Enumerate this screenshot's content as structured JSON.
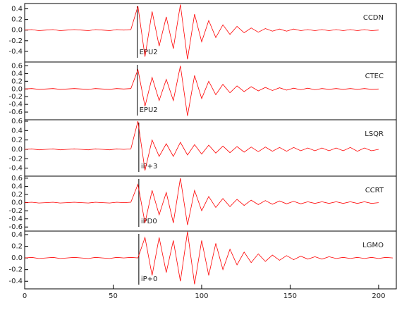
{
  "chart_data": {
    "type": "line",
    "xlim": [
      0,
      210
    ],
    "xticks": [
      0,
      50,
      100,
      150,
      200
    ],
    "color": "#ff0000",
    "panels": [
      {
        "station": "CCDN",
        "phase": "EPU2",
        "pick": 63.6,
        "ylim": [
          -0.6,
          0.5
        ],
        "yticks": [
          -0.4,
          -0.2,
          {
            "value": 0,
            "label": "0.0"
          },
          0.2,
          0.4
        ],
        "x": [
          0,
          4,
          8,
          12,
          16,
          20,
          24,
          28,
          32,
          36,
          40,
          44,
          48,
          52,
          56,
          60,
          64,
          68,
          72,
          76,
          80,
          84,
          88,
          92,
          96,
          100,
          104,
          108,
          112,
          116,
          120,
          124,
          128,
          132,
          136,
          140,
          144,
          148,
          152,
          156,
          160,
          164,
          168,
          172,
          176,
          180,
          184,
          188,
          192,
          196,
          200
        ],
        "values": [
          0,
          0.01,
          -0.01,
          0,
          0.01,
          -0.01,
          0,
          0.01,
          0,
          -0.01,
          0.01,
          0,
          -0.01,
          0.01,
          0,
          0.01,
          0.45,
          -0.5,
          0.35,
          -0.3,
          0.25,
          -0.35,
          0.48,
          -0.55,
          0.3,
          -0.22,
          0.18,
          -0.14,
          0.1,
          -0.08,
          0.07,
          -0.05,
          0.04,
          -0.04,
          0.03,
          -0.02,
          0.02,
          -0.02,
          0.02,
          -0.01,
          0.01,
          -0.01,
          0.01,
          -0.01,
          0.01,
          -0.01,
          0.01,
          -0.01,
          0.01,
          -0.01,
          0
        ]
      },
      {
        "station": "CTEC",
        "phase": "EPU2",
        "pick": 63.6,
        "ylim": [
          -0.8,
          0.7
        ],
        "yticks": [
          -0.6,
          -0.4,
          -0.2,
          {
            "value": 0,
            "label": "0.0"
          },
          0.2,
          0.4,
          0.6
        ],
        "x": [
          0,
          4,
          8,
          12,
          16,
          20,
          24,
          28,
          32,
          36,
          40,
          44,
          48,
          52,
          56,
          60,
          64,
          68,
          72,
          76,
          80,
          84,
          88,
          92,
          96,
          100,
          104,
          108,
          112,
          116,
          120,
          124,
          128,
          132,
          136,
          140,
          144,
          148,
          152,
          156,
          160,
          164,
          168,
          172,
          176,
          180,
          184,
          188,
          192,
          196,
          200
        ],
        "values": [
          0,
          0.01,
          -0.01,
          0,
          0.01,
          -0.01,
          0,
          0.01,
          0,
          -0.01,
          0.01,
          0,
          -0.01,
          0.01,
          0,
          0.01,
          0.5,
          -0.45,
          0.3,
          -0.3,
          0.25,
          -0.3,
          0.6,
          -0.7,
          0.35,
          -0.25,
          0.2,
          -0.15,
          0.12,
          -0.1,
          0.08,
          -0.07,
          0.06,
          -0.05,
          0.04,
          -0.04,
          0.03,
          -0.03,
          0.02,
          -0.02,
          0.02,
          -0.02,
          0.01,
          -0.01,
          0.01,
          -0.01,
          0.01,
          -0.01,
          0.01,
          -0.01,
          0
        ]
      },
      {
        "station": "LSQR",
        "phase": "iP+3",
        "pick": 64.5,
        "ylim": [
          -0.57,
          0.63
        ],
        "yticks": [
          -0.4,
          -0.2,
          {
            "value": 0,
            "label": "0.0"
          },
          0.2,
          0.4,
          0.6
        ],
        "x": [
          0,
          4,
          8,
          12,
          16,
          20,
          24,
          28,
          32,
          36,
          40,
          44,
          48,
          52,
          56,
          60,
          64,
          68,
          72,
          76,
          80,
          84,
          88,
          92,
          96,
          100,
          104,
          108,
          112,
          116,
          120,
          124,
          128,
          132,
          136,
          140,
          144,
          148,
          152,
          156,
          160,
          164,
          168,
          172,
          176,
          180,
          184,
          188,
          192,
          196,
          200
        ],
        "values": [
          0,
          0.01,
          -0.01,
          0,
          0.01,
          -0.01,
          0,
          0.01,
          0,
          -0.01,
          0.01,
          0,
          -0.01,
          0.01,
          0,
          0.01,
          0.6,
          -0.45,
          0.2,
          -0.15,
          0.12,
          -0.15,
          0.15,
          -0.12,
          0.1,
          -0.1,
          0.09,
          -0.08,
          0.07,
          -0.07,
          0.06,
          -0.06,
          0.05,
          -0.05,
          0.05,
          -0.04,
          0.04,
          -0.04,
          0.04,
          -0.03,
          0.03,
          -0.03,
          0.03,
          -0.03,
          0.03,
          -0.03,
          0.04,
          -0.04,
          0.03,
          -0.03,
          0
        ]
      },
      {
        "station": "CCRT",
        "phase": "iPD0",
        "pick": 64.5,
        "ylim": [
          -0.7,
          0.65
        ],
        "yticks": [
          -0.6,
          -0.4,
          -0.2,
          {
            "value": 0,
            "label": "0.0"
          },
          0.2,
          0.4,
          0.6
        ],
        "x": [
          0,
          4,
          8,
          12,
          16,
          20,
          24,
          28,
          32,
          36,
          40,
          44,
          48,
          52,
          56,
          60,
          64,
          68,
          72,
          76,
          80,
          84,
          88,
          92,
          96,
          100,
          104,
          108,
          112,
          116,
          120,
          124,
          128,
          132,
          136,
          140,
          144,
          148,
          152,
          156,
          160,
          164,
          168,
          172,
          176,
          180,
          184,
          188,
          192,
          196,
          200
        ],
        "values": [
          0,
          0.01,
          -0.01,
          0,
          0.01,
          -0.01,
          0,
          0.01,
          0,
          -0.01,
          0.01,
          0,
          -0.01,
          0.01,
          0,
          0.01,
          0.45,
          -0.5,
          0.3,
          -0.3,
          0.25,
          -0.5,
          0.6,
          -0.55,
          0.3,
          -0.2,
          0.15,
          -0.12,
          0.1,
          -0.1,
          0.08,
          -0.07,
          0.06,
          -0.05,
          0.05,
          -0.04,
          0.04,
          -0.03,
          0.03,
          -0.03,
          0.02,
          -0.02,
          0.02,
          -0.02,
          0.02,
          -0.02,
          0.02,
          -0.02,
          0.02,
          -0.02,
          0
        ]
      },
      {
        "station": "LGMO",
        "phase": "iP+0",
        "pick": 64.5,
        "ylim": [
          -0.53,
          0.46
        ],
        "yticks": [
          -0.4,
          -0.2,
          {
            "value": 0,
            "label": "0.0"
          },
          0.2,
          0.4
        ],
        "x": [
          0,
          4,
          8,
          12,
          16,
          20,
          24,
          28,
          32,
          36,
          40,
          44,
          48,
          52,
          56,
          60,
          64,
          68,
          72,
          76,
          80,
          84,
          88,
          92,
          96,
          100,
          104,
          108,
          112,
          116,
          120,
          124,
          128,
          132,
          136,
          140,
          144,
          148,
          152,
          156,
          160,
          164,
          168,
          172,
          176,
          180,
          184,
          188,
          192,
          196,
          200,
          204,
          208
        ],
        "values": [
          0,
          0.01,
          -0.01,
          0,
          0.01,
          -0.01,
          0,
          0.01,
          0,
          -0.01,
          0.01,
          0,
          -0.01,
          0.01,
          0,
          0.01,
          0,
          0.35,
          -0.3,
          0.35,
          -0.25,
          0.3,
          -0.4,
          0.45,
          -0.45,
          0.3,
          -0.3,
          0.25,
          -0.2,
          0.15,
          -0.12,
          0.1,
          -0.08,
          0.07,
          -0.06,
          0.05,
          -0.04,
          0.04,
          -0.03,
          0.03,
          -0.02,
          0.02,
          -0.02,
          0.02,
          -0.01,
          0.01,
          -0.01,
          0.01,
          -0.01,
          0.01,
          -0.01,
          0.01,
          0
        ]
      }
    ]
  }
}
